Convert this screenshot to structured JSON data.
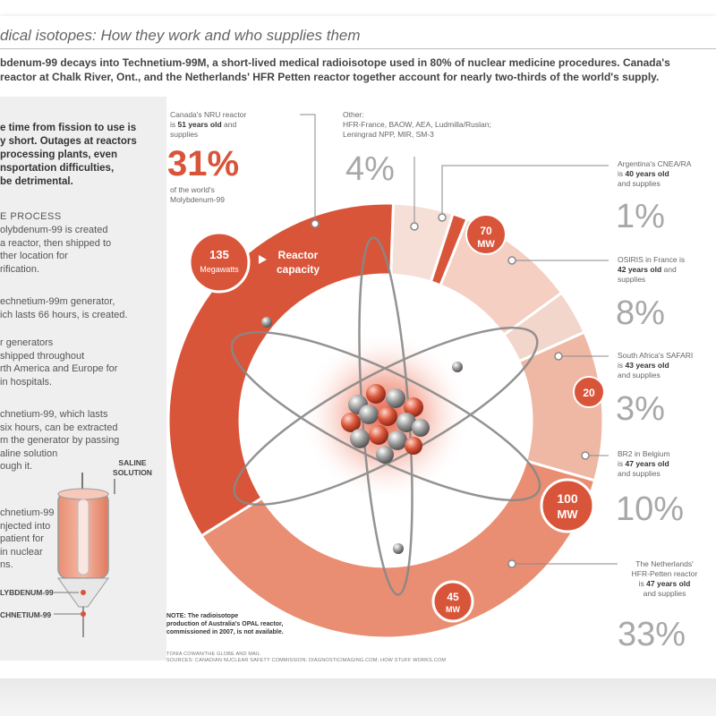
{
  "title": "dical isotopes: How they work and who supplies them",
  "intro": {
    "line1": "bdenum-99 decays into Technetium-99M, a short-lived medical radioisotope used in 80% of nuclear medicine procedures. Canada's",
    "line2": "reactor at Chalk River, Ont., and the Netherlands' HFR Petten reactor together account for nearly two-thirds of the world's supply."
  },
  "sidebar": {
    "lead": [
      "e time from fission to use is",
      "y short. Outages at reactors",
      "processing plants, even",
      "nsportation difficulties,",
      "be detrimental."
    ],
    "process_heading": "E PROCESS",
    "steps": [
      [
        "olybdenum-99 is created",
        "a reactor, then shipped to",
        "ther location for",
        "rification."
      ],
      [
        "echnetium-99m generator,",
        "ich lasts 66 hours, is created."
      ],
      [
        "r generators",
        "shipped throughout",
        "rth America and Europe for",
        "in hospitals."
      ],
      [
        "chnetium-99, which lasts",
        "six hours, can be extracted",
        "m the generator by passing",
        "aline solution",
        "ough it."
      ],
      [
        "chnetium-99",
        "njected into",
        "patient for",
        "in nuclear",
        "ns."
      ]
    ],
    "saline_label": [
      "SALINE",
      "SOLUTION"
    ],
    "molybdenum_label": "LYBDENUM-99",
    "technetium_label": "CHNETIUM-99"
  },
  "annotations": {
    "canada": {
      "lines": [
        "Canada's NRU reactor",
        "is 51 years old and",
        "supplies"
      ],
      "age": "51 years old",
      "pct": "31%",
      "of": [
        "of the world's",
        "Molybdenum-99"
      ]
    },
    "other": {
      "lines": [
        "Other:",
        "HFR-France, BAOW, AEA, Ludmilla/Ruslan;",
        "Leningrad NPP, MIR, SM-3"
      ],
      "pct": "4%"
    },
    "argentina": {
      "lines": [
        "Argentina's CNEA/RA",
        "is 40 years old",
        "and supplies"
      ],
      "age": "40 years old",
      "pct": "1%"
    },
    "osiris": {
      "lines": [
        "OSIRIS in France is",
        "42 years old and",
        "supplies"
      ],
      "age": "42 years old",
      "pct": "8%"
    },
    "safari": {
      "lines": [
        "South Africa's SAFARI",
        "is 43 years old",
        "and supplies"
      ],
      "age": "43 years old",
      "pct": "3%"
    },
    "br2": {
      "lines": [
        "BR2 in Belgium",
        "is 47 years old",
        "and supplies"
      ],
      "age": "47 years old",
      "pct": "10%"
    },
    "petten": {
      "lines": [
        "The Netherlands'",
        "HFR-Petten reactor",
        "is 47 years old",
        "and supplies"
      ],
      "age": "47 years old",
      "pct": "33%"
    }
  },
  "capacity_badges": {
    "nru": {
      "value": "135",
      "unit": "Megawatts"
    },
    "reactor_capacity": [
      "Reactor",
      "capacity"
    ],
    "argentina": {
      "value": "70",
      "unit": "MW"
    },
    "safari": {
      "value": "20"
    },
    "br2": {
      "value": "100",
      "unit": "MW"
    },
    "petten": {
      "value": "45",
      "unit": "MW"
    }
  },
  "note": [
    "NOTE: The radioisotope",
    "production of Australia's OPAL reactor,",
    "commissioned in 2007, is not available."
  ],
  "credit": [
    "TONIA COWAN/THE GLOBE AND MAIL",
    "SOURCES: CANADIAN NUCLEAR SAFETY COMMISSION; DIAGNOSTICIMAGING.COM; HOW STUFF WORKS.COM"
  ],
  "colors": {
    "accent": "#d9553a",
    "dark_red": "#cc4a30",
    "gray_text": "#a8a8a8"
  },
  "chart_data": {
    "type": "pie",
    "title": "",
    "categories": [
      "Canada's NRU",
      "Other",
      "Argentina's CNEA/RA",
      "OSIRIS France",
      "South Africa's SAFARI",
      "BR2 Belgium",
      "The Netherlands' HFR-Petten"
    ],
    "values": [
      31,
      4,
      1,
      8,
      3,
      10,
      33
    ],
    "colors": [
      "#d9553a",
      "#f6dfd7",
      "#d9553a",
      "#f4cfc2",
      "#f3d6cb",
      "#eeb8a5",
      "#e98e72"
    ]
  }
}
